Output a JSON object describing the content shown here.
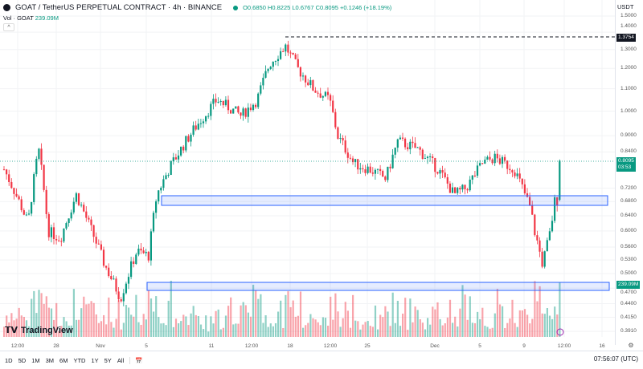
{
  "header": {
    "title": "GOAT / TetherUS PERPETUAL CONTRACT · 4h · BINANCE",
    "ohlc": "O0.6850 H0.8225 L0.6767 C0.8095 +0.1246 (+18.19%)"
  },
  "volume": {
    "label": "Vol · GOAT",
    "value": "239.09M"
  },
  "currency": "USDT",
  "y_ticks": [
    "1.5000",
    "1.4000",
    "1.3000",
    "1.2000",
    "1.1000",
    "1.0000",
    "0.9000",
    "0.8400",
    "0.7200",
    "0.6800",
    "0.6400",
    "0.6000",
    "0.5600",
    "0.5300",
    "0.5000",
    "0.4700",
    "0.4400",
    "0.4150",
    "0.3910"
  ],
  "tags": {
    "high_line": "1.3754",
    "last_price": "0.8095",
    "countdown": "03:53",
    "volume": "239.09M"
  },
  "x_ticks": [
    "12:00",
    "28",
    "Nov",
    "5",
    "11",
    "12:00",
    "18",
    "12:00",
    "25",
    "Dec",
    "5",
    "9",
    "12:00",
    "16"
  ],
  "ranges": [
    "1D",
    "5D",
    "1M",
    "3M",
    "6M",
    "YTD",
    "1Y",
    "5Y",
    "All"
  ],
  "clock": "07:56:07 (UTC)",
  "logo": "TradingView",
  "colors": {
    "up": "#089981",
    "down": "#f23645",
    "zone": "#2962ff"
  },
  "price_path": [
    [
      5,
      0.78
    ],
    [
      20,
      0.7
    ],
    [
      35,
      0.62
    ],
    [
      48,
      0.85
    ],
    [
      60,
      0.6
    ],
    [
      75,
      0.58
    ],
    [
      95,
      0.7
    ],
    [
      110,
      0.62
    ],
    [
      130,
      0.52
    ],
    [
      150,
      0.45
    ],
    [
      170,
      0.55
    ],
    [
      185,
      0.54
    ],
    [
      195,
      0.7
    ],
    [
      210,
      0.78
    ],
    [
      240,
      0.92
    ],
    [
      270,
      1.05
    ],
    [
      300,
      0.98
    ],
    [
      320,
      1.05
    ],
    [
      335,
      1.22
    ],
    [
      355,
      1.32
    ],
    [
      370,
      1.2
    ],
    [
      390,
      1.1
    ],
    [
      410,
      1.05
    ],
    [
      420,
      0.9
    ],
    [
      440,
      0.8
    ],
    [
      460,
      0.78
    ],
    [
      480,
      0.75
    ],
    [
      495,
      0.88
    ],
    [
      520,
      0.85
    ],
    [
      545,
      0.78
    ],
    [
      565,
      0.7
    ],
    [
      580,
      0.72
    ],
    [
      600,
      0.8
    ],
    [
      615,
      0.82
    ],
    [
      640,
      0.78
    ],
    [
      660,
      0.66
    ],
    [
      665,
      0.6
    ],
    [
      675,
      0.52
    ],
    [
      685,
      0.6
    ],
    [
      690,
      0.68
    ],
    [
      694,
      0.685
    ],
    [
      697,
      0.8095
    ]
  ]
}
